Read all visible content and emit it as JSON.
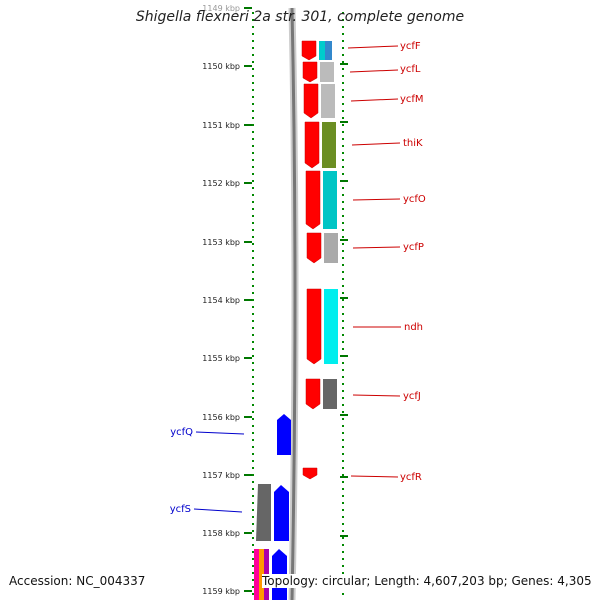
{
  "title": "Shigella flexneri 2a str. 301, complete genome",
  "footer": {
    "accession": "Accession: NC_004337",
    "topology": "Topology: circular; Length: 4,607,203 bp; Genes: 4,305"
  },
  "ruler": {
    "labels": [
      "1149 kbp",
      "1150 kbp",
      "1151 kbp",
      "1152 kbp",
      "1153 kbp",
      "1154 kbp",
      "1155 kbp",
      "1156 kbp",
      "1157 kbp",
      "1158 kbp",
      "1159 kbp"
    ]
  },
  "genes_right": [
    {
      "name": "ycfF",
      "color": "#dd0000"
    },
    {
      "name": "ycfL",
      "color": "#dd0000"
    },
    {
      "name": "ycfM",
      "color": "#dd0000"
    },
    {
      "name": "thiK",
      "color": "#dd0000"
    },
    {
      "name": "ycfO",
      "color": "#dd0000"
    },
    {
      "name": "ycfP",
      "color": "#dd0000"
    },
    {
      "name": "ndh",
      "color": "#dd0000"
    },
    {
      "name": "ycfJ",
      "color": "#dd0000"
    },
    {
      "name": "ycfR",
      "color": "#dd0000"
    }
  ],
  "genes_left": [
    {
      "name": "ycfQ",
      "color": "#0000cc"
    },
    {
      "name": "ycfS",
      "color": "#0000cc"
    }
  ],
  "colors": {
    "forward_gene": "#ff0000",
    "reverse_gene": "#0000ff",
    "tick": "#007700",
    "backbone": "#777777"
  }
}
